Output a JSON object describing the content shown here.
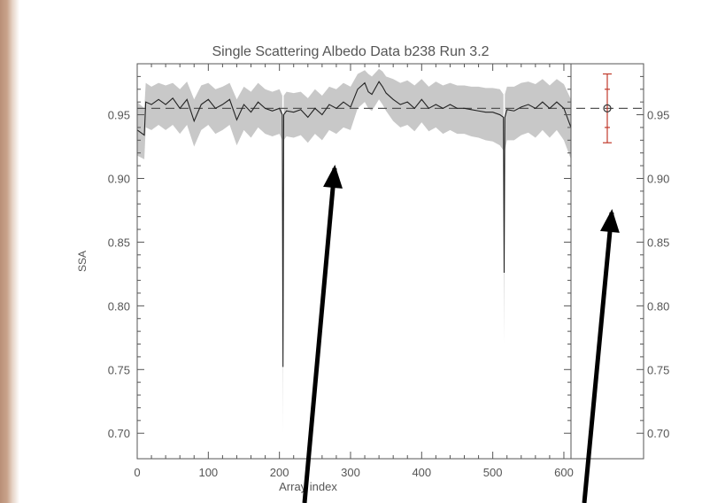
{
  "chart_data": {
    "type": "line",
    "title": "Single Scattering Albedo Data b238 Run 3.2",
    "xlabel": "Array index",
    "ylabel": "SSA",
    "xlim": [
      0,
      610
    ],
    "ylim": [
      0.68,
      0.99
    ],
    "x_ticks": [
      0,
      100,
      200,
      300,
      400,
      500,
      600
    ],
    "y_ticks": [
      0.7,
      0.75,
      0.8,
      0.85,
      0.9,
      0.95
    ],
    "y_tick_labels": [
      "0.70",
      "0.75",
      "0.80",
      "0.85",
      "0.90",
      "0.95"
    ],
    "reference_line": 0.955,
    "series": [
      {
        "x": [
          0,
          10,
          12,
          20,
          30,
          40,
          50,
          60,
          70,
          80,
          90,
          100,
          110,
          120,
          130,
          140,
          150,
          160,
          170,
          180,
          190,
          200,
          204,
          205,
          206,
          210,
          220,
          230,
          240,
          250,
          260,
          270,
          280,
          290,
          300,
          310,
          320,
          325,
          330,
          340,
          345,
          350,
          360,
          370,
          380,
          390,
          400,
          410,
          420,
          430,
          440,
          450,
          460,
          470,
          480,
          490,
          500,
          510,
          515,
          516,
          517,
          520,
          530,
          540,
          550,
          560,
          570,
          580,
          590,
          600,
          610
        ],
        "y": [
          0.938,
          0.934,
          0.96,
          0.958,
          0.962,
          0.958,
          0.963,
          0.955,
          0.962,
          0.945,
          0.958,
          0.962,
          0.955,
          0.958,
          0.962,
          0.946,
          0.958,
          0.952,
          0.96,
          0.955,
          0.953,
          0.955,
          0.95,
          0.752,
          0.95,
          0.953,
          0.952,
          0.954,
          0.948,
          0.955,
          0.95,
          0.958,
          0.955,
          0.96,
          0.956,
          0.97,
          0.975,
          0.968,
          0.966,
          0.976,
          0.972,
          0.967,
          0.962,
          0.958,
          0.96,
          0.955,
          0.962,
          0.955,
          0.958,
          0.955,
          0.958,
          0.955,
          0.955,
          0.954,
          0.953,
          0.952,
          0.952,
          0.95,
          0.948,
          0.826,
          0.948,
          0.954,
          0.953,
          0.956,
          0.958,
          0.955,
          0.96,
          0.955,
          0.96,
          0.955,
          0.94
        ],
        "band_upper": [
          0.96,
          0.955,
          0.975,
          0.972,
          0.975,
          0.973,
          0.975,
          0.97,
          0.976,
          0.962,
          0.973,
          0.975,
          0.97,
          0.972,
          0.975,
          0.962,
          0.972,
          0.968,
          0.975,
          0.97,
          0.968,
          0.97,
          0.965,
          0.76,
          0.965,
          0.968,
          0.967,
          0.968,
          0.963,
          0.97,
          0.965,
          0.972,
          0.97,
          0.975,
          0.972,
          0.982,
          0.985,
          0.982,
          0.98,
          0.986,
          0.984,
          0.98,
          0.978,
          0.975,
          0.977,
          0.973,
          0.978,
          0.972,
          0.976,
          0.973,
          0.975,
          0.973,
          0.973,
          0.972,
          0.972,
          0.971,
          0.971,
          0.97,
          0.966,
          0.835,
          0.966,
          0.972,
          0.972,
          0.975,
          0.976,
          0.974,
          0.978,
          0.973,
          0.978,
          0.974,
          0.962
        ],
        "band_lower": [
          0.918,
          0.915,
          0.94,
          0.938,
          0.942,
          0.938,
          0.942,
          0.935,
          0.942,
          0.925,
          0.938,
          0.942,
          0.935,
          0.938,
          0.942,
          0.926,
          0.938,
          0.932,
          0.94,
          0.935,
          0.933,
          0.935,
          0.93,
          0.7,
          0.93,
          0.933,
          0.932,
          0.934,
          0.928,
          0.935,
          0.93,
          0.938,
          0.935,
          0.94,
          0.938,
          0.955,
          0.96,
          0.955,
          0.953,
          0.962,
          0.958,
          0.953,
          0.945,
          0.94,
          0.942,
          0.937,
          0.944,
          0.937,
          0.94,
          0.935,
          0.938,
          0.935,
          0.935,
          0.933,
          0.932,
          0.93,
          0.929,
          0.926,
          0.922,
          0.77,
          0.922,
          0.93,
          0.93,
          0.934,
          0.936,
          0.932,
          0.938,
          0.932,
          0.938,
          0.93,
          0.915
        ]
      }
    ],
    "side_panel": {
      "mean": 0.955,
      "inner_error": [
        0.94,
        0.97
      ],
      "outer_error": [
        0.928,
        0.982
      ],
      "error_color": "#c0392b",
      "y_tick_labels": [
        "0.95",
        "0.90",
        "0.85",
        "0.80",
        "0.75",
        "0.70"
      ]
    },
    "colors": {
      "line": "#222222",
      "band": "#c8c8c8",
      "axis": "#555555",
      "arrow": "#000000"
    }
  }
}
